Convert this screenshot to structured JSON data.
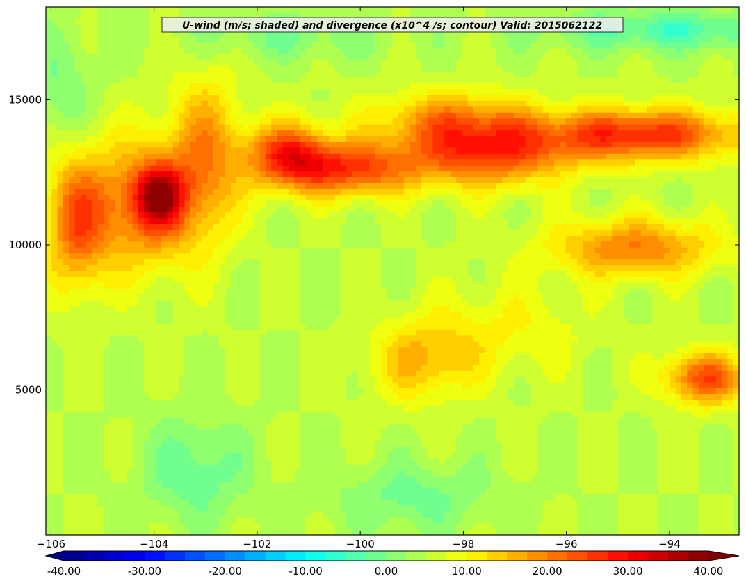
{
  "chart_data": {
    "type": "heatmap",
    "title": "U-wind (m/s; shaded) and divergence (x10^4 /s; contour) Valid: 2015062122",
    "xlabel": "",
    "ylabel": "",
    "xlim": [
      -106.1,
      -92.65
    ],
    "ylim": [
      0,
      18200
    ],
    "x_ticks": [
      -106,
      -104,
      -102,
      -100,
      -98,
      -96,
      -94
    ],
    "x_tick_labels": [
      "−106",
      "−104",
      "−102",
      "−100",
      "−98",
      "−96",
      "−94"
    ],
    "y_ticks": [
      5000,
      10000,
      15000
    ],
    "y_tick_labels": [
      "5000",
      "10000",
      "15000"
    ],
    "grid": false,
    "colorbar": {
      "orientation": "horizontal",
      "levels_min": -40,
      "levels_max": 40,
      "level_step": 2.5,
      "extend": "both",
      "ticks": [
        -40,
        -30,
        -20,
        -10,
        0,
        10,
        20,
        30,
        40
      ],
      "tick_labels": [
        "-40.00",
        "-30.00",
        "-20.00",
        "-10.00",
        "0.00",
        "10.00",
        "20.00",
        "30.00",
        "40.00"
      ],
      "colormap": "jet"
    },
    "field_background_value": 5,
    "features": [
      {
        "x_center": -105.5,
        "y_center": 10800,
        "x_radius": 0.6,
        "y_radius": 2300,
        "value": 22
      },
      {
        "x_center": -104.2,
        "y_center": 11400,
        "x_radius": 1.0,
        "y_radius": 2200,
        "value": 22
      },
      {
        "x_center": -103.9,
        "y_center": 11700,
        "x_radius": 0.45,
        "y_radius": 1000,
        "value": 25
      },
      {
        "x_center": -103.0,
        "y_center": 13000,
        "x_radius": 0.7,
        "y_radius": 2800,
        "value": 18
      },
      {
        "x_center": -101.4,
        "y_center": 13100,
        "x_radius": 0.8,
        "y_radius": 1100,
        "value": 26
      },
      {
        "x_center": -100.2,
        "y_center": 12600,
        "x_radius": 1.2,
        "y_radius": 900,
        "value": 24
      },
      {
        "x_center": -97.6,
        "y_center": 13100,
        "x_radius": 1.6,
        "y_radius": 1100,
        "value": 24
      },
      {
        "x_center": -98.2,
        "y_center": 14300,
        "x_radius": 1.5,
        "y_radius": 1000,
        "value": 18
      },
      {
        "x_center": -94.6,
        "y_center": 13800,
        "x_radius": 2.0,
        "y_radius": 900,
        "value": 27
      },
      {
        "x_center": -94.7,
        "y_center": 9900,
        "x_radius": 1.6,
        "y_radius": 1000,
        "value": 20
      },
      {
        "x_center": -93.3,
        "y_center": 5400,
        "x_radius": 0.8,
        "y_radius": 900,
        "value": 24
      },
      {
        "x_center": -98.8,
        "y_center": 6000,
        "x_radius": 1.0,
        "y_radius": 1400,
        "value": 15
      },
      {
        "x_center": -97.2,
        "y_center": 7100,
        "x_radius": 1.6,
        "y_radius": 1600,
        "value": 10
      },
      {
        "x_center": -103.2,
        "y_center": 2200,
        "x_radius": 1.0,
        "y_radius": 1800,
        "value": -2
      },
      {
        "x_center": -99.0,
        "y_center": 1300,
        "x_radius": 1.5,
        "y_radius": 1200,
        "value": -1
      },
      {
        "x_center": -94.0,
        "y_center": 17400,
        "x_radius": 2.5,
        "y_radius": 700,
        "value": -4
      },
      {
        "x_center": -105.8,
        "y_center": 15500,
        "x_radius": 0.6,
        "y_radius": 2000,
        "value": 0
      },
      {
        "x_center": -101.5,
        "y_center": 17200,
        "x_radius": 2.0,
        "y_radius": 800,
        "value": 0
      }
    ]
  }
}
